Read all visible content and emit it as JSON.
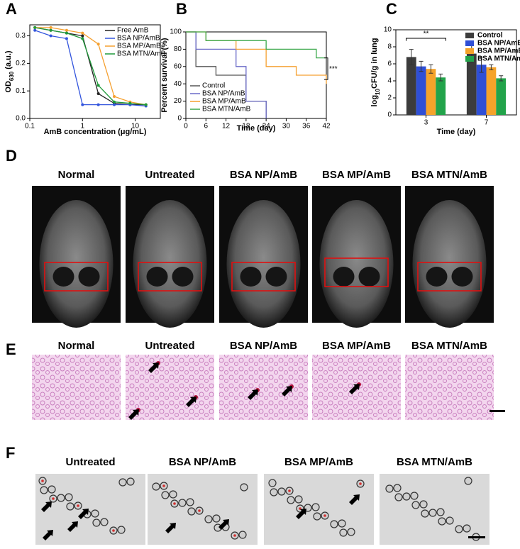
{
  "chart_data": [
    {
      "type": "line",
      "panel_label": "A",
      "x_label": "AmB concentration (μg/mL)",
      "y_label": {
        "main": "OD",
        "sub": "630",
        "unit": " (a.u.)"
      },
      "xlog": true,
      "xlim": [
        0.1,
        30
      ],
      "xticks": [
        0.1,
        1,
        10
      ],
      "ylim": [
        0,
        0.34
      ],
      "yticks": [
        {
          "value": 0,
          "label": "0.0"
        },
        0.1,
        0.2,
        0.3
      ],
      "legend": "upper right",
      "x": [
        0.125,
        0.25,
        0.5,
        1,
        2,
        4,
        8,
        16
      ],
      "series": [
        {
          "name": "Free AmB",
          "color": "#222222",
          "values": [
            0.33,
            0.32,
            0.31,
            0.3,
            0.09,
            0.055,
            0.05,
            0.05
          ]
        },
        {
          "name": "BSA NP/AmB",
          "color": "#3355dd",
          "values": [
            0.32,
            0.3,
            0.29,
            0.05,
            0.05,
            0.05,
            0.05,
            0.045
          ]
        },
        {
          "name": "BSA MP/AmB",
          "color": "#f5a030",
          "values": [
            0.33,
            0.33,
            0.32,
            0.31,
            0.27,
            0.08,
            0.06,
            0.05
          ]
        },
        {
          "name": "BSA MTN/AmB",
          "color": "#1f9a3a",
          "values": [
            0.33,
            0.32,
            0.31,
            0.29,
            0.12,
            0.06,
            0.055,
            0.05
          ]
        }
      ]
    },
    {
      "type": "step",
      "panel_label": "B",
      "x_label": "Time (day)",
      "y_label": "Percent survival (%)",
      "xlim": [
        0,
        42
      ],
      "xticks": [
        0,
        6,
        12,
        18,
        24,
        30,
        36,
        42
      ],
      "ylim": [
        0,
        100
      ],
      "yticks": [
        0,
        20,
        40,
        60,
        80,
        100
      ],
      "legend": "lower left",
      "annotation": "***",
      "series": [
        {
          "name": "Control",
          "color": "#555555",
          "x": [
            0,
            3,
            9,
            18,
            24
          ],
          "values": [
            100,
            60,
            50,
            20,
            0
          ]
        },
        {
          "name": "BSA NP/AmB",
          "color": "#6a6ac8",
          "x": [
            0,
            3,
            15,
            18,
            24
          ],
          "values": [
            100,
            80,
            60,
            20,
            0
          ]
        },
        {
          "name": "BSA MP/AmB",
          "color": "#f5a030",
          "x": [
            0,
            6,
            15,
            24,
            33,
            42
          ],
          "values": [
            100,
            90,
            80,
            60,
            50,
            40
          ]
        },
        {
          "name": "BSA MTN/AmB",
          "color": "#3aa84a",
          "x": [
            0,
            6,
            24,
            39,
            42
          ],
          "values": [
            100,
            90,
            80,
            70,
            70
          ]
        }
      ]
    },
    {
      "type": "bar",
      "panel_label": "C",
      "x_label": "Time (day)",
      "y_label": {
        "main": "log",
        "sub": "10",
        "unit": "CFU/g in lung"
      },
      "categories": [
        "3",
        "7"
      ],
      "ylim": [
        0,
        10
      ],
      "yticks": [
        0,
        2,
        4,
        6,
        8,
        10
      ],
      "legend": "upper right",
      "annotation": "**",
      "series": [
        {
          "name": "Control",
          "color": "#3c3c3c",
          "values": [
            6.8,
            7.2
          ],
          "errors": [
            0.9,
            1.0
          ]
        },
        {
          "name": "BSA NP/AmB",
          "color": "#2f4fd6",
          "values": [
            5.7,
            5.9
          ],
          "errors": [
            0.6,
            0.9
          ]
        },
        {
          "name": "BSA MP/AmB",
          "color": "#f5a32a",
          "values": [
            5.4,
            5.6
          ],
          "errors": [
            0.5,
            0.3
          ]
        },
        {
          "name": "BSA MTN/AmB",
          "color": "#22a34a",
          "values": [
            4.4,
            4.3
          ],
          "errors": [
            0.4,
            0.3
          ]
        }
      ]
    }
  ],
  "panels": {
    "D": {
      "letter": "D",
      "labels": [
        "Normal",
        "Untreated",
        "BSA NP/AmB",
        "BSA MP/AmB",
        "BSA MTN/AmB"
      ]
    },
    "E": {
      "letter": "E",
      "labels": [
        "Normal",
        "Untreated",
        "BSA NP/AmB",
        "BSA MP/AmB",
        "BSA MTN/AmB"
      ]
    },
    "F": {
      "letter": "F",
      "labels": [
        "Untreated",
        "BSA NP/AmB",
        "BSA MP/AmB",
        "BSA MTN/AmB"
      ]
    }
  }
}
